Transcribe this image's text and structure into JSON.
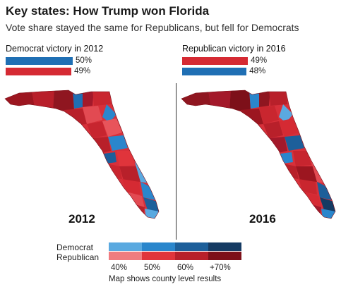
{
  "title": "Key states: How Trump won Florida",
  "subtitle": "Vote share stayed the same for Republicans, but fell for Democrats",
  "colors": {
    "dem": "#1f6fb4",
    "rep": "#d52a33",
    "dem_scale": [
      "#5aa9e0",
      "#2a86cc",
      "#1d5f9a",
      "#153b63"
    ],
    "rep_scale": [
      "#f07c80",
      "#e0343b",
      "#b8202a",
      "#7d1019"
    ]
  },
  "panels": [
    {
      "heading": "Democrat victory in 2012",
      "year": "2012",
      "bars": [
        {
          "party": "dem",
          "value": 50,
          "label": "50%"
        },
        {
          "party": "rep",
          "value": 49,
          "label": "49%"
        }
      ]
    },
    {
      "heading": "Republican victory in 2016",
      "year": "2016",
      "bars": [
        {
          "party": "rep",
          "value": 49,
          "label": "49%"
        },
        {
          "party": "dem",
          "value": 48,
          "label": "48%"
        }
      ]
    }
  ],
  "legend": {
    "dem_label": "Democrat",
    "rep_label": "Republican",
    "ticks": [
      "40%",
      "50%",
      "60%",
      "+70%"
    ],
    "footnote": "Map shows county level results"
  }
}
